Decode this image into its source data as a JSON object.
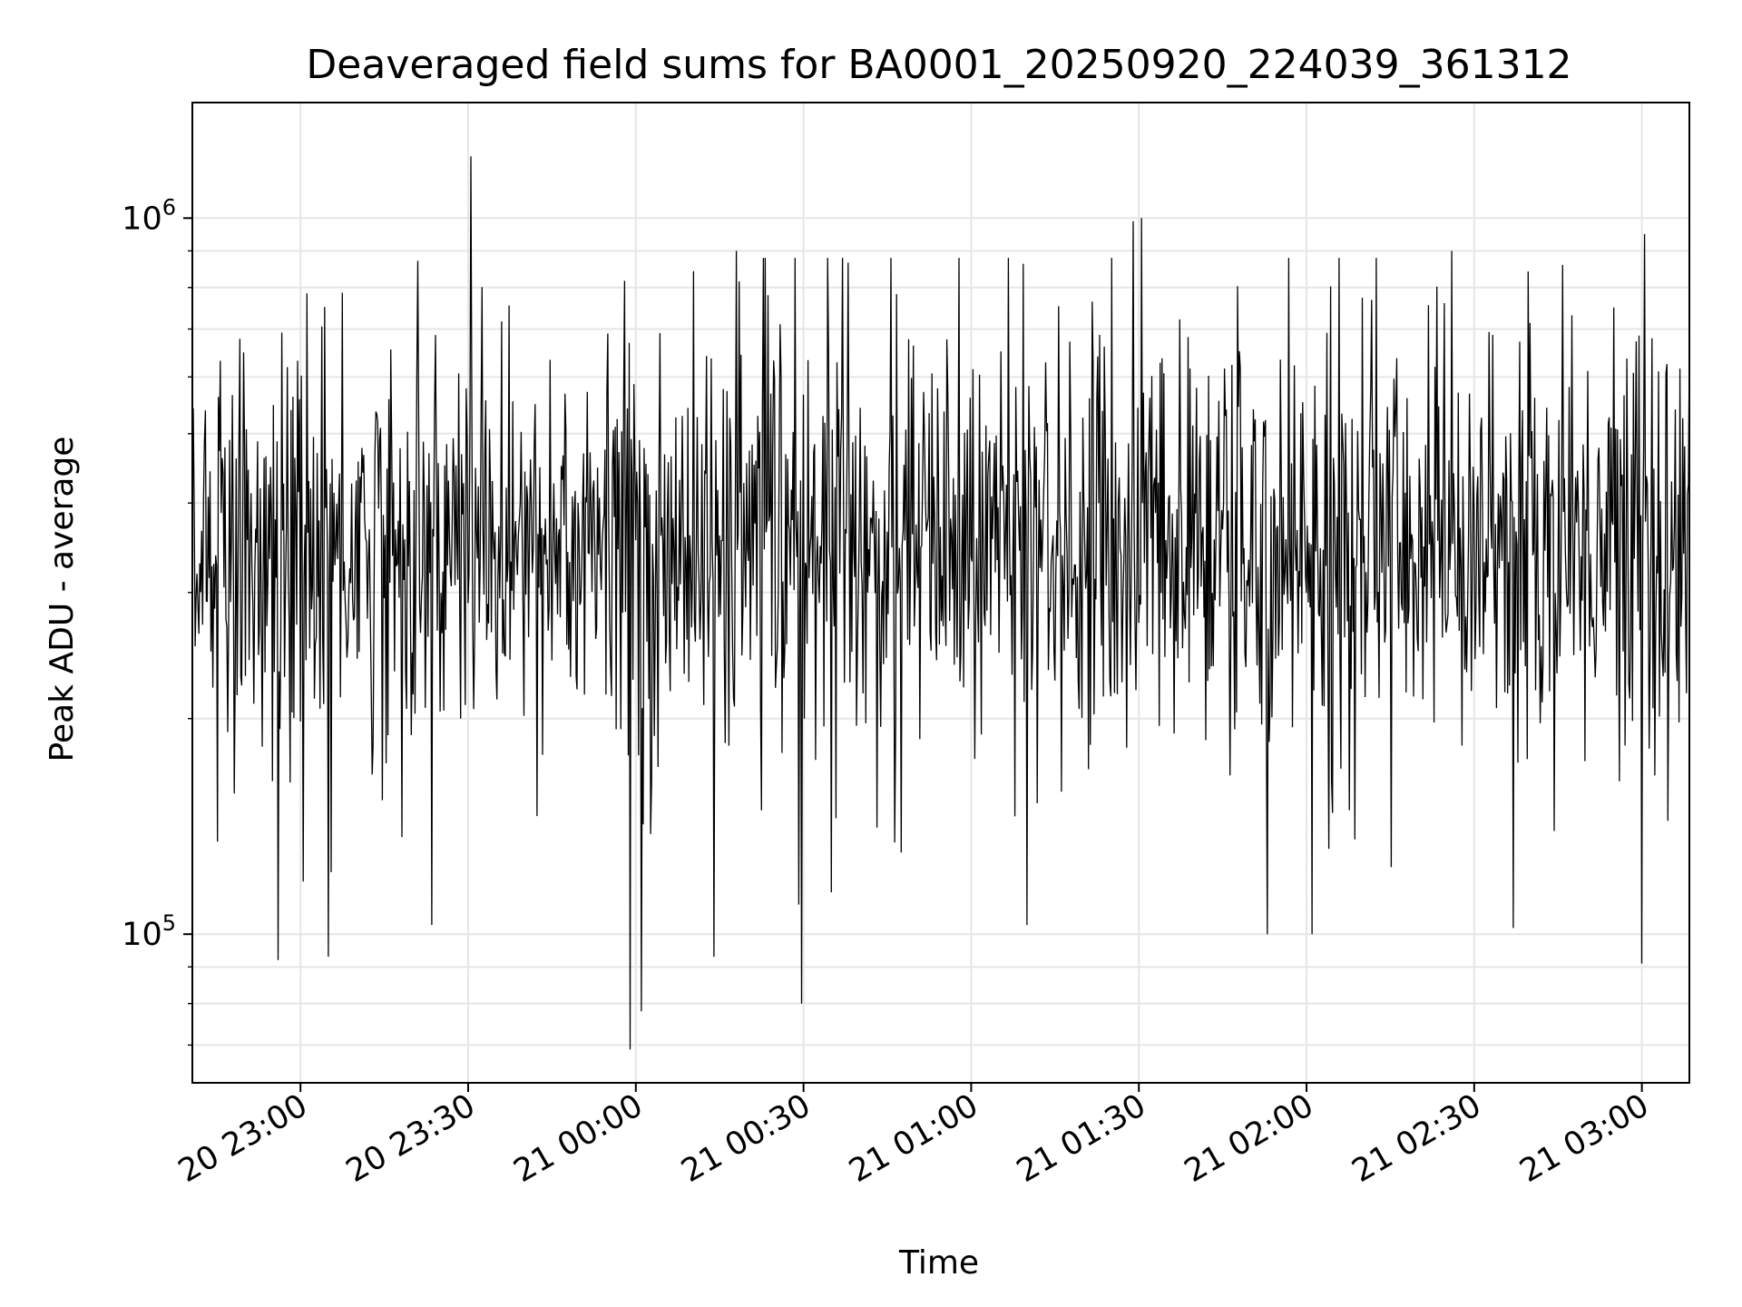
{
  "chart_data": {
    "type": "line",
    "title": "Deaveraged field sums for BA0001_20250920_224039_361312",
    "xlabel": "Time",
    "ylabel": "Peak ADU - average",
    "yscale": "log",
    "xlim": [
      "2025-09-20 22:40:39",
      "2025-09-21 03:08:30"
    ],
    "ylim": [
      62000,
      1450000
    ],
    "grid": true,
    "legend": "none",
    "colors": {
      "line": "#000000",
      "grid": "#e6e6e6",
      "axes": "#000000"
    },
    "x_ticks": [
      {
        "value": "2025-09-20 23:00",
        "label": "20 23:00"
      },
      {
        "value": "2025-09-20 23:30",
        "label": "20 23:30"
      },
      {
        "value": "2025-09-21 00:00",
        "label": "21 00:00"
      },
      {
        "value": "2025-09-21 00:30",
        "label": "21 00:30"
      },
      {
        "value": "2025-09-21 01:00",
        "label": "21 01:00"
      },
      {
        "value": "2025-09-21 01:30",
        "label": "21 01:30"
      },
      {
        "value": "2025-09-21 02:00",
        "label": "21 02:00"
      },
      {
        "value": "2025-09-21 02:30",
        "label": "21 02:30"
      },
      {
        "value": "2025-09-21 03:00",
        "label": "21 03:00"
      }
    ],
    "y_ticks": [
      {
        "value": 100000,
        "base": "10",
        "exponent": "5"
      },
      {
        "value": 1000000,
        "base": "10",
        "exponent": "6"
      }
    ],
    "series": [
      {
        "sampling": "about 10 s cadence",
        "typical_range": [
          200000,
          600000
        ],
        "median": 350000,
        "x": [
          "2025-09-20 23:30:30",
          "2025-09-20 22:56:00",
          "2025-09-20 23:05:00",
          "2025-09-20 23:23:30",
          "2025-09-20 23:59:00",
          "2025-09-21 00:01:00",
          "2025-09-21 00:14:00",
          "2025-09-21 00:18:00",
          "2025-09-21 00:29:40",
          "2025-09-21 00:37:00",
          "2025-09-21 00:47:30",
          "2025-09-21 01:10:00",
          "2025-09-21 01:29:00",
          "2025-09-21 01:30:30",
          "2025-09-21 01:53:00",
          "2025-09-21 02:01:00",
          "2025-09-21 02:26:00",
          "2025-09-21 02:37:00",
          "2025-09-21 03:00:00",
          "2025-09-21 03:00:30"
        ],
        "y": [
          1220000,
          92000,
          93000,
          103000,
          69000,
          78000,
          93000,
          900000,
          80000,
          880000,
          130000,
          103000,
          990000,
          1000000,
          100000,
          100000,
          900000,
          102000,
          91000,
          950000
        ]
      }
    ]
  }
}
